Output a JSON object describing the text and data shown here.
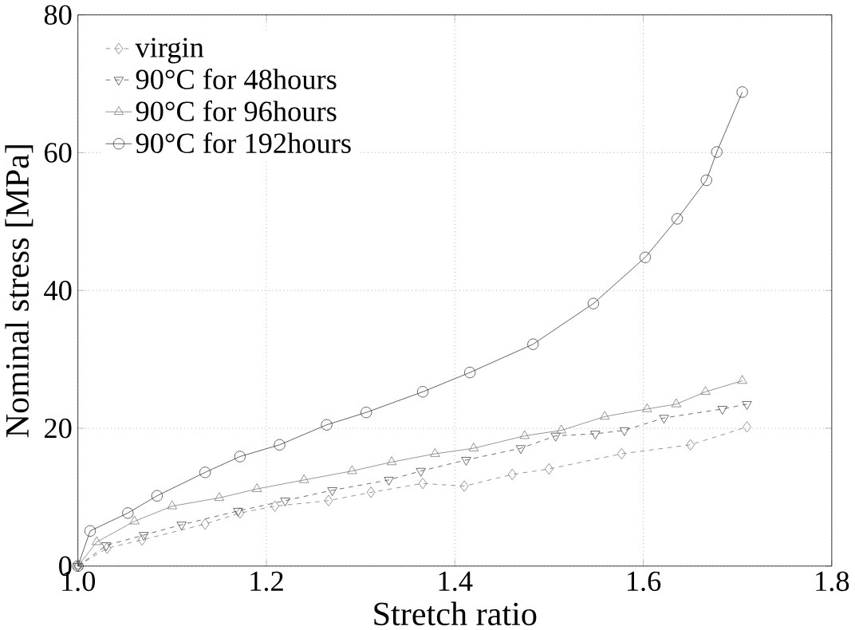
{
  "chart_data": {
    "type": "line",
    "xlabel": "Stretch ratio",
    "ylabel": "Nominal stress [MPa]",
    "xlim": [
      1.0,
      1.8
    ],
    "xticks": [
      {
        "value": 1.0,
        "label": "1.0"
      },
      1.2,
      1.4,
      1.6,
      1.8
    ],
    "ylim": [
      0,
      80
    ],
    "yticks": [
      0,
      20,
      40,
      60,
      80
    ],
    "grid": true,
    "legend": "top left",
    "series": [
      {
        "name": "virgin",
        "color": "#777777",
        "marker": "diamond",
        "line_style": "dashed",
        "x": [
          1.0,
          1.031,
          1.068,
          1.135,
          1.172,
          1.209,
          1.266,
          1.311,
          1.366,
          1.41,
          1.461,
          1.5,
          1.577,
          1.65,
          1.71
        ],
        "values": [
          0,
          2.6,
          3.8,
          6.1,
          7.7,
          8.7,
          9.5,
          10.7,
          12,
          11.6,
          13.3,
          14.1,
          16.3,
          17.6,
          20.2
        ]
      },
      {
        "name": "90°C for 48hours",
        "color": "#444444",
        "marker": "triangle_down",
        "line_style": "dashed",
        "x": [
          1.0,
          1.03,
          1.07,
          1.11,
          1.17,
          1.22,
          1.27,
          1.33,
          1.364,
          1.412,
          1.47,
          1.507,
          1.549,
          1.58,
          1.622,
          1.684,
          1.71
        ],
        "values": [
          0,
          3,
          4.5,
          6,
          8,
          9.5,
          11,
          12.5,
          13.8,
          15.4,
          17.1,
          18.9,
          19.2,
          19.7,
          21.5,
          22.8,
          23.5
        ]
      },
      {
        "name": "90°C for 96hours",
        "color": "#777777",
        "marker": "triangle",
        "line_style": "solid",
        "x": [
          1.0,
          1.02,
          1.06,
          1.1,
          1.15,
          1.19,
          1.24,
          1.291,
          1.333,
          1.379,
          1.42,
          1.474,
          1.513,
          1.559,
          1.604,
          1.635,
          1.666,
          1.705
        ],
        "values": [
          0,
          3.5,
          6.5,
          8.7,
          9.9,
          11.2,
          12.5,
          13.8,
          15.1,
          16.3,
          17.1,
          18.9,
          19.7,
          21.7,
          22.8,
          23.5,
          25.3,
          26.9
        ]
      },
      {
        "name": "90°C for 192hours",
        "color": "#333333",
        "marker": "circle",
        "line_style": "solid",
        "x": [
          1.0,
          1.013,
          1.053,
          1.084,
          1.135,
          1.172,
          1.214,
          1.264,
          1.306,
          1.366,
          1.416,
          1.483,
          1.547,
          1.602,
          1.636,
          1.667,
          1.678,
          1.705
        ],
        "values": [
          0,
          5.1,
          7.7,
          10.2,
          13.6,
          15.9,
          17.6,
          20.5,
          22.3,
          25.3,
          28.1,
          32.2,
          38.1,
          44.8,
          50.4,
          56.0,
          60.1,
          68.8
        ]
      }
    ]
  }
}
